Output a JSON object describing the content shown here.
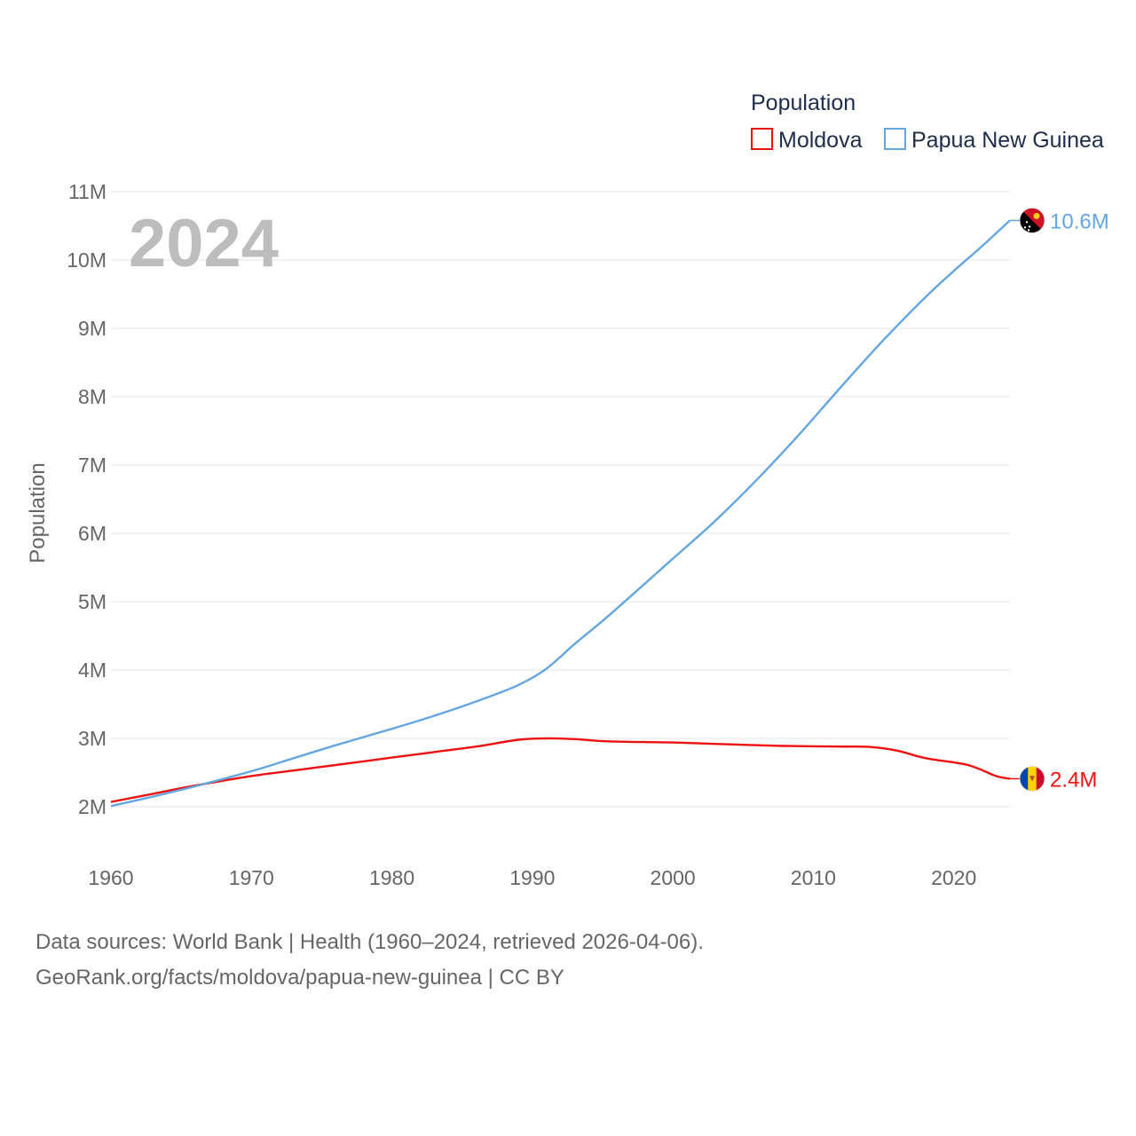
{
  "chart_data": {
    "type": "line",
    "title": "Population",
    "year_label": "2024",
    "ylabel": "Population",
    "xlabel": "",
    "xlim": [
      1960,
      2024
    ],
    "ylim": [
      2000000,
      11000000
    ],
    "x_ticks": [
      1960,
      1970,
      1980,
      1990,
      2000,
      2010,
      2020
    ],
    "y_ticks": [
      {
        "value": 2000000,
        "label": "2M"
      },
      {
        "value": 3000000,
        "label": "3M"
      },
      {
        "value": 4000000,
        "label": "4M"
      },
      {
        "value": 5000000,
        "label": "5M"
      },
      {
        "value": 6000000,
        "label": "6M"
      },
      {
        "value": 7000000,
        "label": "7M"
      },
      {
        "value": 8000000,
        "label": "8M"
      },
      {
        "value": 9000000,
        "label": "9M"
      },
      {
        "value": 10000000,
        "label": "10M"
      },
      {
        "value": 11000000,
        "label": "11M"
      }
    ],
    "legend_position": "top-right",
    "series": [
      {
        "name": "Moldova",
        "color": "#ee1111",
        "end_label": "2.4M",
        "flag_icon": "moldova-flag-icon",
        "points": [
          [
            1960,
            2070000
          ],
          [
            1963,
            2190000
          ],
          [
            1966,
            2310000
          ],
          [
            1970,
            2450000
          ],
          [
            1973,
            2530000
          ],
          [
            1976,
            2610000
          ],
          [
            1980,
            2720000
          ],
          [
            1983,
            2800000
          ],
          [
            1986,
            2880000
          ],
          [
            1989,
            2980000
          ],
          [
            1991,
            3000000
          ],
          [
            1993,
            2990000
          ],
          [
            1995,
            2960000
          ],
          [
            1997,
            2950000
          ],
          [
            2000,
            2940000
          ],
          [
            2003,
            2920000
          ],
          [
            2006,
            2900000
          ],
          [
            2008,
            2890000
          ],
          [
            2010,
            2885000
          ],
          [
            2012,
            2880000
          ],
          [
            2014,
            2875000
          ],
          [
            2016,
            2820000
          ],
          [
            2018,
            2710000
          ],
          [
            2021,
            2610000
          ],
          [
            2023,
            2450000
          ],
          [
            2024,
            2410000
          ]
        ]
      },
      {
        "name": "Papua New Guinea",
        "color": "#63a6e2",
        "end_label": "10.6M",
        "flag_icon": "papua-new-guinea-flag-icon",
        "points": [
          [
            1960,
            2010000
          ],
          [
            1963,
            2150000
          ],
          [
            1966,
            2300000
          ],
          [
            1970,
            2520000
          ],
          [
            1973,
            2710000
          ],
          [
            1976,
            2900000
          ],
          [
            1980,
            3140000
          ],
          [
            1983,
            3330000
          ],
          [
            1986,
            3540000
          ],
          [
            1989,
            3780000
          ],
          [
            1991,
            4020000
          ],
          [
            1993,
            4380000
          ],
          [
            1995,
            4720000
          ],
          [
            1997,
            5080000
          ],
          [
            2000,
            5630000
          ],
          [
            2003,
            6180000
          ],
          [
            2006,
            6790000
          ],
          [
            2009,
            7450000
          ],
          [
            2012,
            8150000
          ],
          [
            2015,
            8830000
          ],
          [
            2018,
            9460000
          ],
          [
            2020,
            9840000
          ],
          [
            2022,
            10200000
          ],
          [
            2024,
            10580000
          ]
        ]
      }
    ]
  },
  "footer": {
    "line1": "Data sources: World Bank | Health (1960–2024, retrieved 2026-04-06).",
    "line2": "GeoRank.org/facts/moldova/papua-new-guinea | CC BY"
  }
}
